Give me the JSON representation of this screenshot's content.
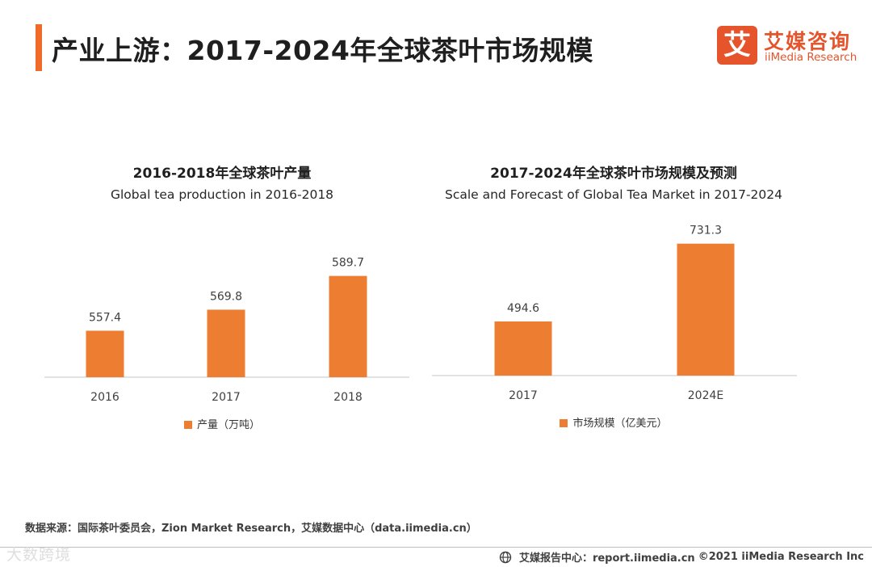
{
  "page": {
    "title": "产业上游：2017-2024年全球茶叶市场规模"
  },
  "logo": {
    "mark": "艾",
    "cn": "艾媒咨询",
    "en": "iiMedia Research"
  },
  "colors": {
    "accent": "#f06b2a",
    "bar": "#ed7d31",
    "brand": "#e5542b"
  },
  "chart_data": [
    {
      "type": "bar",
      "title": "2016-2018年全球茶叶产量",
      "subtitle": "Global tea production in 2016-2018",
      "categories": [
        "2016",
        "2017",
        "2018"
      ],
      "series": [
        {
          "name": "产量（万吨）",
          "values": [
            557.4,
            569.8,
            589.7
          ]
        }
      ],
      "value_labels": [
        "557.4",
        "569.8",
        "589.7"
      ],
      "ylim": [
        530,
        600
      ],
      "grid": false,
      "legend": "bottom"
    },
    {
      "type": "bar",
      "title": "2017-2024年全球茶叶市场规模及预测",
      "subtitle": "Scale and Forecast of Global Tea Market in 2017-2024",
      "categories": [
        "2017",
        "2024E"
      ],
      "series": [
        {
          "name": "市场规模（亿美元）",
          "values": [
            494.6,
            731.3
          ]
        }
      ],
      "value_labels": [
        "494.6",
        "731.3"
      ],
      "ylim": [
        330,
        760
      ],
      "grid": false,
      "legend": "bottom"
    }
  ],
  "source": "数据来源：国际茶叶委员会，Zion Market Research，艾媒数据中心（data.iimedia.cn）",
  "footer": {
    "report_center": "艾媒报告中心：report.iimedia.cn",
    "copyright": "©2021  iiMedia Research  Inc"
  },
  "watermark": "大数跨境"
}
